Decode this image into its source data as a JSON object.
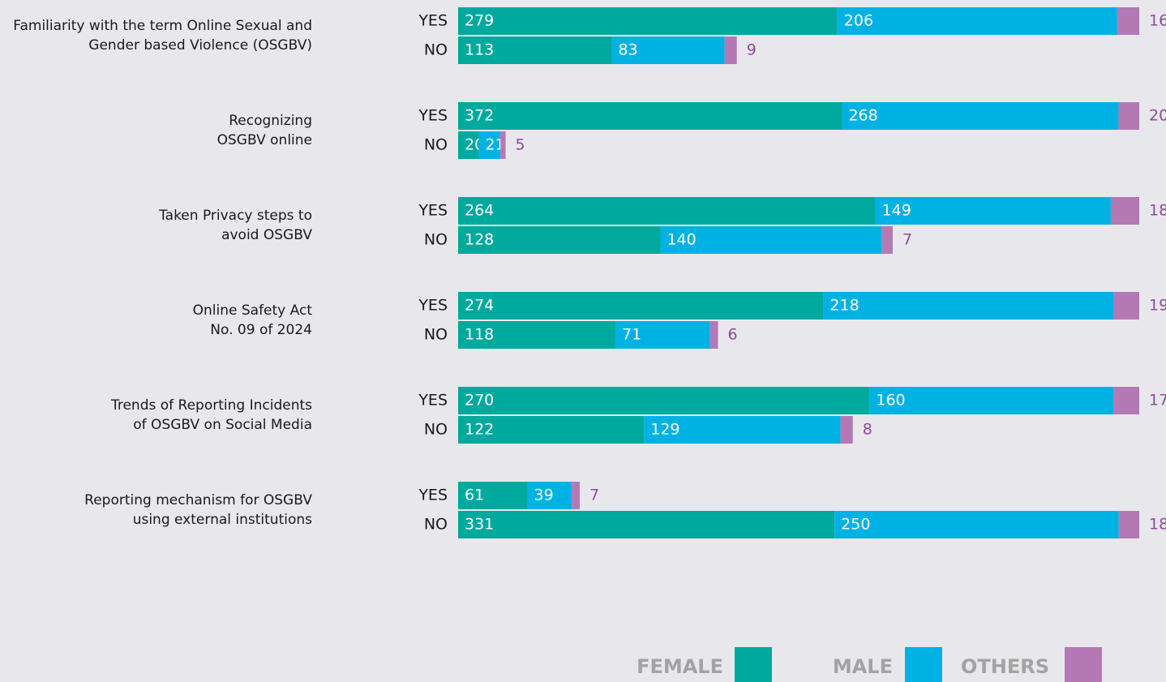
{
  "chart_data": {
    "type": "bar",
    "stacked": true,
    "orientation": "horizontal",
    "group_labels": [
      [
        "Familiarity with the term Online Sexual and",
        "Gender based Violence (OSGBV)"
      ],
      [
        "Recognizing",
        "OSGBV online"
      ],
      [
        "Taken Privacy steps to",
        "avoid OSGBV"
      ],
      [
        "Online Safety Act",
        "No. 09 of 2024"
      ],
      [
        "Trends of Reporting Incidents",
        "of OSGBV on Social Media"
      ],
      [
        "Reporting mechanism for OSGBV",
        "using external institutions"
      ]
    ],
    "categories": [
      "YES",
      "NO",
      "YES",
      "NO",
      "YES",
      "NO",
      "YES",
      "NO",
      "YES",
      "NO",
      "YES",
      "NO"
    ],
    "series": [
      {
        "name": "FEMALE",
        "color": "#00a99d",
        "values": [
          279,
          113,
          372,
          20,
          264,
          128,
          274,
          118,
          270,
          122,
          61,
          331
        ]
      },
      {
        "name": "MALE",
        "color": "#00b2e3",
        "values": [
          206,
          83,
          268,
          21,
          149,
          140,
          218,
          71,
          160,
          129,
          39,
          250
        ]
      },
      {
        "name": "OTHERS",
        "color": "#b479b5",
        "values": [
          16,
          9,
          20,
          5,
          18,
          7,
          19,
          6,
          17,
          8,
          7,
          18
        ]
      }
    ],
    "legend": "bottom-right"
  }
}
